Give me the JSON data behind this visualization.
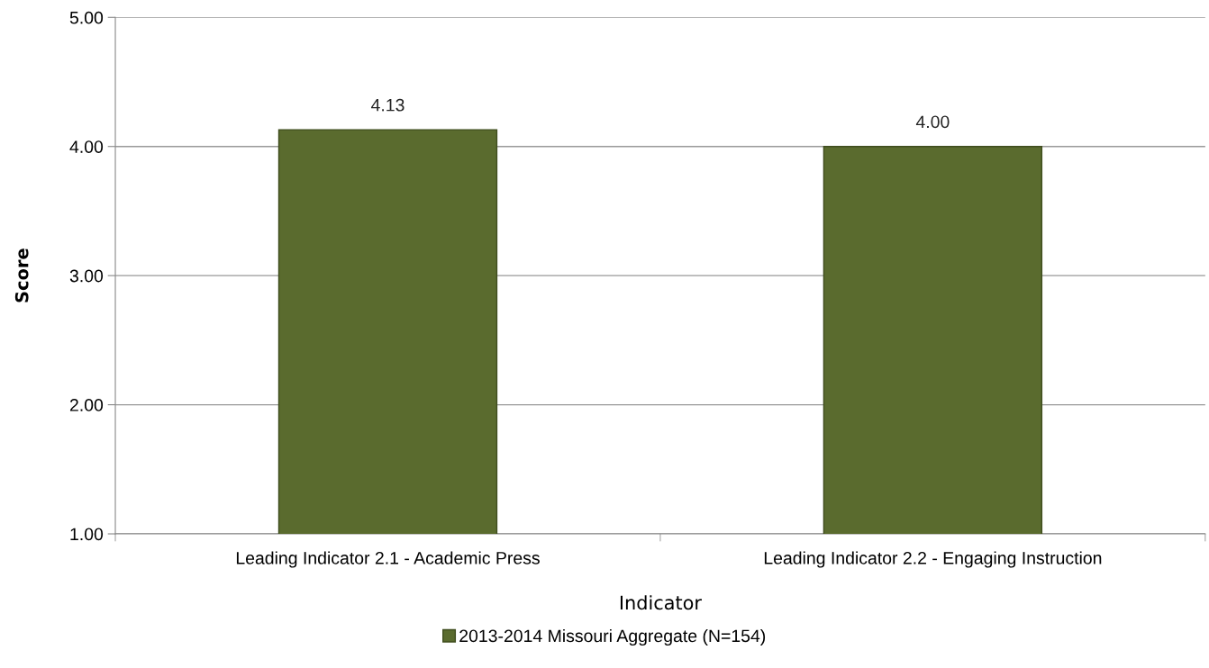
{
  "chart_data": {
    "type": "bar",
    "xlabel": "Indicator",
    "ylabel": "Score",
    "categories": [
      "Leading Indicator 2.1 - Academic Press",
      "Leading Indicator 2.2 - Engaging Instruction"
    ],
    "series": [
      {
        "name": "2013-2014 Missouri Aggregate (N=154)",
        "color": "#5a6b2e",
        "values": [
          4.13,
          4.0
        ]
      }
    ],
    "ylim": [
      1,
      5
    ],
    "yticks": [
      {
        "value": 1,
        "label": "1.00"
      },
      {
        "value": 2,
        "label": "2.00"
      },
      {
        "value": 3,
        "label": "3.00"
      },
      {
        "value": 4,
        "label": "4.00"
      },
      {
        "value": 5,
        "label": "5.00"
      }
    ],
    "value_labels": [
      "4.13",
      "4.00"
    ],
    "grid": "y",
    "legend": "bottom"
  }
}
